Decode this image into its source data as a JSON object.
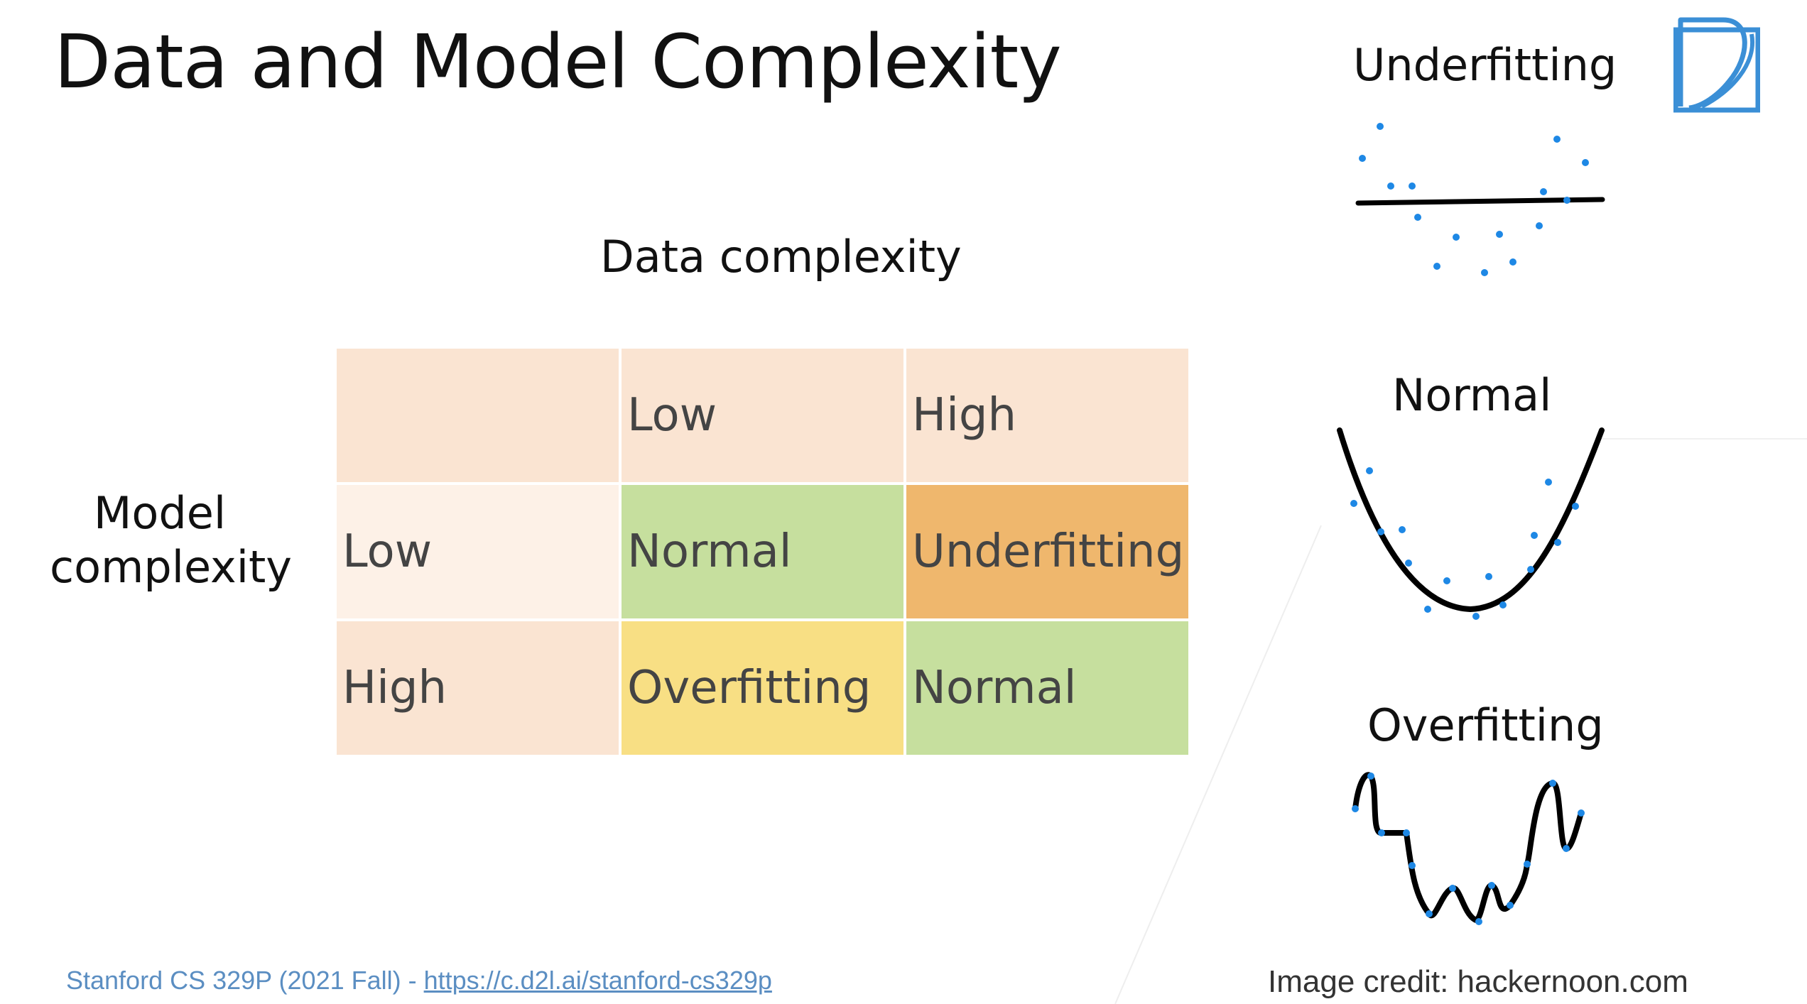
{
  "slide": {
    "title": "Data and Model Complexity",
    "column_header": "Data complexity",
    "row_header": "Model complexity"
  },
  "table": {
    "columns": [
      "",
      "Low",
      "High"
    ],
    "rows": [
      {
        "label": "Low",
        "cells": [
          "Normal",
          "Underfitting"
        ]
      },
      {
        "label": "High",
        "cells": [
          "Overfitting",
          "Normal"
        ]
      }
    ],
    "colors": {
      "header": "#fae4d2",
      "row_low": "#fdf1e7",
      "normal": "#c6df9e",
      "underfitting": "#efb76d",
      "overfitting": "#f8df84"
    }
  },
  "figures": {
    "underfitting_label": "Underfitting",
    "normal_label": "Normal",
    "overfitting_label": "Overfitting",
    "credit": "Image credit: hackernoon.com",
    "point_color": "#1e88e5",
    "curve_color": "#000000"
  },
  "footer": {
    "course": "Stanford CS 329P (2021 Fall) - ",
    "link": "https://c.d2l.ai/stanford-cs329p"
  },
  "logo": {
    "icon": "d2l-logo-icon",
    "color": "#3b8fd6"
  }
}
